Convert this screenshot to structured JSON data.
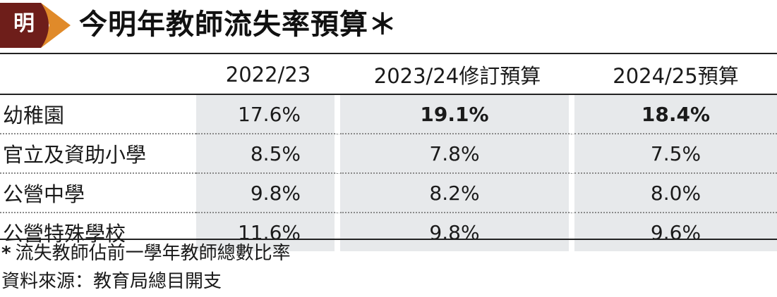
{
  "logo": {
    "text": "明",
    "bg_color": "#6e1e1a",
    "arrow_color": "#e08a2a"
  },
  "title": "今明年教師流失率預算＊",
  "chart_data": {
    "type": "table",
    "columns": [
      "2022/23",
      "2023/24修訂預算",
      "2024/25預算"
    ],
    "rows": [
      {
        "label": "幼稚園",
        "values": [
          "17.6%",
          "19.1%",
          "18.4%"
        ],
        "bold": [
          false,
          true,
          true
        ]
      },
      {
        "label": "官立及資助小學",
        "values": [
          "8.5%",
          "7.8%",
          "7.5%"
        ],
        "bold": [
          false,
          false,
          false
        ]
      },
      {
        "label": "公營中學",
        "values": [
          "9.8%",
          "8.2%",
          "8.0%"
        ],
        "bold": [
          false,
          false,
          false
        ]
      },
      {
        "label": "公營特殊學校",
        "values": [
          "11.6%",
          "9.8%",
          "9.6%"
        ],
        "bold": [
          false,
          false,
          false
        ]
      }
    ],
    "cell_bg": "#e7e9eb"
  },
  "footnote": {
    "star": "*",
    "text": "流失教師佔前一學年教師總數比率"
  },
  "source": "資料來源：教育局總目開支"
}
